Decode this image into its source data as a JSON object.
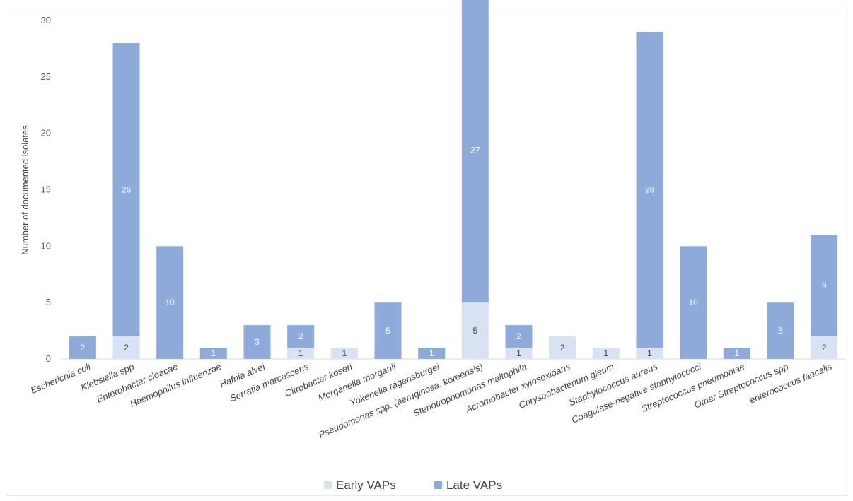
{
  "chart_data": {
    "type": "bar",
    "stacked": true,
    "title": "",
    "xlabel": "",
    "ylabel": "Number of documented isolates",
    "ylim": [
      0,
      30
    ],
    "yticks": [
      0,
      5,
      10,
      15,
      20,
      25,
      30
    ],
    "grid": false,
    "legend_position": "bottom",
    "colors": {
      "early": "#d9e2f3",
      "late": "#8eaadb",
      "early_label": "#404040",
      "late_label": "#ffffff"
    },
    "categories": [
      "Escherichia coli",
      "Klebsiella spp",
      "Enterobacter cloacae",
      "Haemophilus influenzae",
      "Hafnia alvei",
      "Serratia marcescens",
      "Citrobacter koseri",
      "Morganella morganii",
      "Yokenella ragensburgei",
      "Pseudomonas spp. (aeruginosa, koreensis)",
      "Stenotrophomonas maltophila",
      "Acromobacter xylosoxidans",
      "Chryseobacterium gleum",
      "Staphylococcus aureus",
      "Coagulase-negative staphylococci",
      "Streptococcus pneumoniae",
      "Other Streptococcus spp",
      "enterococcus faecalis"
    ],
    "series": [
      {
        "name": "Early VAPs",
        "values": [
          0,
          2,
          0,
          0,
          0,
          1,
          1,
          0,
          0,
          5,
          1,
          2,
          1,
          1,
          0,
          0,
          0,
          2
        ]
      },
      {
        "name": "Late VAPs",
        "values": [
          2,
          26,
          10,
          1,
          3,
          2,
          0,
          5,
          1,
          27,
          2,
          0,
          0,
          28,
          10,
          1,
          5,
          9
        ]
      }
    ]
  }
}
